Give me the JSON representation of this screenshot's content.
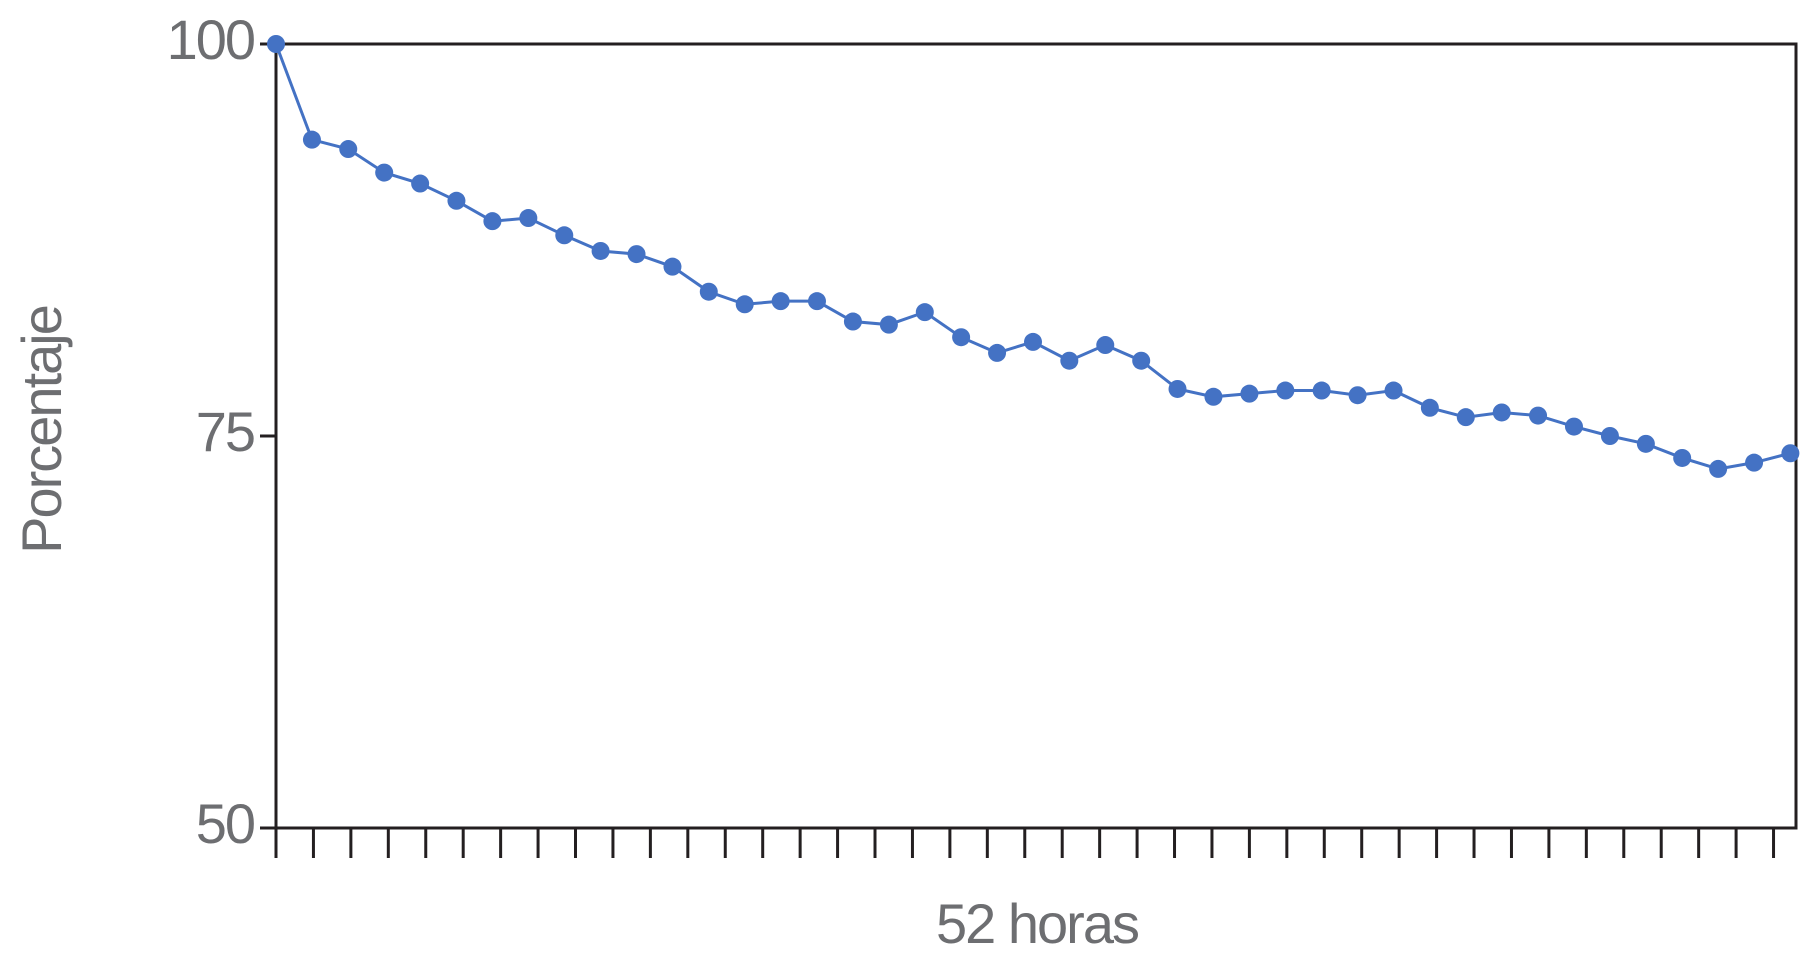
{
  "chart_data": {
    "type": "line",
    "y_label": "Porcentaje",
    "x_label": "52 horas",
    "x": [
      0,
      0.96,
      1.93,
      2.89,
      3.85,
      4.82,
      5.78,
      6.74,
      7.7,
      8.67,
      9.63,
      10.59,
      11.56,
      12.52,
      13.48,
      14.45,
      15.41,
      16.37,
      17.33,
      18.3,
      19.26,
      20.22,
      21.19,
      22.15,
      23.11,
      24.08,
      25.04,
      26.0,
      26.96,
      27.93,
      28.89,
      29.85,
      30.82,
      31.78,
      32.74,
      33.71,
      34.67,
      35.63,
      36.59,
      37.56,
      38.52,
      39.48,
      40.45
    ],
    "series": [
      {
        "color": "#4472c4",
        "values": [
          100,
          93.9,
          93.3,
          91.8,
          91.1,
          90.0,
          88.7,
          88.9,
          87.8,
          86.8,
          86.6,
          85.8,
          84.2,
          83.4,
          83.6,
          83.6,
          82.3,
          82.1,
          82.9,
          81.3,
          80.3,
          81.0,
          79.8,
          80.8,
          79.8,
          78.0,
          77.5,
          77.7,
          77.9,
          77.9,
          77.6,
          77.9,
          76.8,
          76.2,
          76.5,
          76.3,
          75.6,
          75.0,
          74.5,
          73.6,
          72.9,
          73.3,
          73.9
        ]
      }
    ],
    "xlim": [
      0,
      40.6
    ],
    "xticks": [
      0,
      1,
      2,
      3,
      4,
      5,
      6,
      7,
      8,
      9,
      10,
      11,
      12,
      13,
      14,
      15,
      16,
      17,
      18,
      19,
      20,
      21,
      22,
      23,
      24,
      25,
      26,
      27,
      28,
      29,
      30,
      31,
      32,
      33,
      34,
      35,
      36,
      37,
      38,
      39,
      40
    ],
    "ylim": [
      50,
      100
    ],
    "yticks": [
      50,
      75,
      100
    ]
  }
}
